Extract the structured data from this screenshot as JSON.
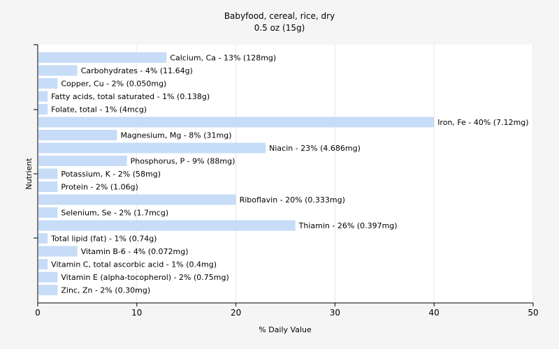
{
  "chart_data": {
    "type": "bar",
    "orientation": "horizontal",
    "title": "Babyfood, cereal, rice, dry",
    "subtitle": "0.5 oz (15g)",
    "xlabel": "% Daily Value",
    "ylabel": "Nutrient",
    "xlim": [
      0,
      50
    ],
    "xticks": [
      0,
      10,
      20,
      30,
      40,
      50
    ],
    "grid": true,
    "bar_color": "#c6dcf7",
    "categories": [
      "Calcium, Ca",
      "Carbohydrates",
      "Copper, Cu",
      "Fatty acids, total saturated",
      "Folate, total",
      "Iron, Fe",
      "Magnesium, Mg",
      "Niacin",
      "Phosphorus, P",
      "Potassium, K",
      "Protein",
      "Riboflavin",
      "Selenium, Se",
      "Thiamin",
      "Total lipid (fat)",
      "Vitamin B-6",
      "Vitamin C, total ascorbic acid",
      "Vitamin E (alpha-tocopherol)",
      "Zinc, Zn"
    ],
    "values": [
      13,
      4,
      2,
      1,
      1,
      40,
      8,
      23,
      9,
      2,
      2,
      20,
      2,
      26,
      1,
      4,
      1,
      2,
      2
    ],
    "labels": [
      "Calcium, Ca - 13% (128mg)",
      "Carbohydrates - 4% (11.64g)",
      "Copper, Cu - 2% (0.050mg)",
      "Fatty acids, total saturated - 1% (0.138g)",
      "Folate, total - 1% (4mcg)",
      "Iron, Fe - 40% (7.12mg)",
      "Magnesium, Mg - 8% (31mg)",
      "Niacin - 23% (4.686mg)",
      "Phosphorus, P - 9% (88mg)",
      "Potassium, K - 2% (58mg)",
      "Protein - 2% (1.06g)",
      "Riboflavin - 20% (0.333mg)",
      "Selenium, Se - 2% (1.7mcg)",
      "Thiamin - 26% (0.397mg)",
      "Total lipid (fat) - 1% (0.74g)",
      "Vitamin B-6 - 4% (0.072mg)",
      "Vitamin C, total ascorbic acid - 1% (0.4mg)",
      "Vitamin E (alpha-tocopherol) - 2% (0.75mg)",
      "Zinc, Zn - 2% (0.30mg)"
    ]
  }
}
